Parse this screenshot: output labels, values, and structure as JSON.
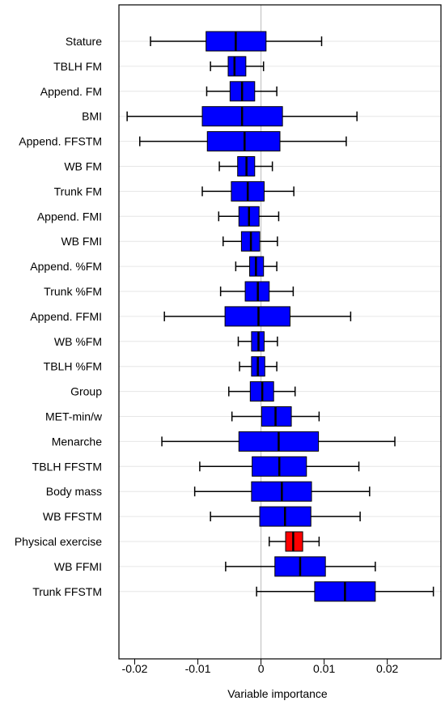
{
  "chart_data": {
    "type": "boxplot",
    "orientation": "horizontal",
    "xlabel": "Variable importance",
    "ylabel": "",
    "xlim": [
      -0.0225,
      0.0285
    ],
    "xticks": [
      -0.02,
      -0.01,
      0,
      0.01,
      0.02
    ],
    "xtick_labels": [
      "-0.02",
      "-0.01",
      "0",
      "0.01",
      "0.02"
    ],
    "grid": "horizontal",
    "zero_line": true,
    "colors": {
      "default_box": "#0000ff",
      "highlight_box": "#ff0000",
      "grid": "#e6e6e6",
      "zero_line": "#bbbbbb"
    },
    "items": [
      {
        "name": "Stature",
        "whisker_low": -0.0175,
        "q1": -0.0087,
        "median": -0.004,
        "q3": 0.0008,
        "whisker_high": 0.0096,
        "highlight": false
      },
      {
        "name": "TBLH FM",
        "whisker_low": -0.008,
        "q1": -0.0052,
        "median": -0.0042,
        "q3": -0.0024,
        "whisker_high": 0.0004,
        "highlight": false
      },
      {
        "name": "Append. FM",
        "whisker_low": -0.0086,
        "q1": -0.0049,
        "median": -0.003,
        "q3": -0.001,
        "whisker_high": 0.0025,
        "highlight": false
      },
      {
        "name": "BMI",
        "whisker_low": -0.0212,
        "q1": -0.0093,
        "median": -0.003,
        "q3": 0.0034,
        "whisker_high": 0.0152,
        "highlight": false
      },
      {
        "name": "Append. FFSTM",
        "whisker_low": -0.0192,
        "q1": -0.0085,
        "median": -0.0026,
        "q3": 0.003,
        "whisker_high": 0.0135,
        "highlight": false
      },
      {
        "name": "WB FM",
        "whisker_low": -0.0066,
        "q1": -0.0037,
        "median": -0.0023,
        "q3": -0.001,
        "whisker_high": 0.0018,
        "highlight": false
      },
      {
        "name": "Trunk FM",
        "whisker_low": -0.0093,
        "q1": -0.0047,
        "median": -0.0021,
        "q3": 0.0005,
        "whisker_high": 0.0052,
        "highlight": false
      },
      {
        "name": "Append. FMI",
        "whisker_low": -0.0067,
        "q1": -0.0035,
        "median": -0.0019,
        "q3": -0.0003,
        "whisker_high": 0.0028,
        "highlight": false
      },
      {
        "name": "WB FMI",
        "whisker_low": -0.006,
        "q1": -0.0031,
        "median": -0.0016,
        "q3": -0.0002,
        "whisker_high": 0.0026,
        "highlight": false
      },
      {
        "name": "Append. %FM",
        "whisker_low": -0.004,
        "q1": -0.0018,
        "median": -0.0008,
        "q3": 0.0004,
        "whisker_high": 0.0025,
        "highlight": false
      },
      {
        "name": "Trunk %FM",
        "whisker_low": -0.0064,
        "q1": -0.0025,
        "median": -0.0005,
        "q3": 0.0013,
        "whisker_high": 0.0051,
        "highlight": false
      },
      {
        "name": "Append. FFMI",
        "whisker_low": -0.0153,
        "q1": -0.0057,
        "median": -0.0004,
        "q3": 0.0046,
        "whisker_high": 0.0142,
        "highlight": false
      },
      {
        "name": "WB %FM",
        "whisker_low": -0.0036,
        "q1": -0.0015,
        "median": -0.0004,
        "q3": 0.0005,
        "whisker_high": 0.0026,
        "highlight": false
      },
      {
        "name": "TBLH %FM",
        "whisker_low": -0.0034,
        "q1": -0.0015,
        "median": -0.0005,
        "q3": 0.0006,
        "whisker_high": 0.0025,
        "highlight": false
      },
      {
        "name": "Group",
        "whisker_low": -0.0051,
        "q1": -0.0017,
        "median": 0.0002,
        "q3": 0.002,
        "whisker_high": 0.0054,
        "highlight": false
      },
      {
        "name": "MET-min/w",
        "whisker_low": -0.0046,
        "q1": 0.0001,
        "median": 0.0023,
        "q3": 0.0048,
        "whisker_high": 0.0092,
        "highlight": false
      },
      {
        "name": "Menarche",
        "whisker_low": -0.0157,
        "q1": -0.0035,
        "median": 0.0028,
        "q3": 0.0091,
        "whisker_high": 0.0212,
        "highlight": false
      },
      {
        "name": "TBLH FFSTM",
        "whisker_low": -0.0097,
        "q1": -0.0014,
        "median": 0.0029,
        "q3": 0.0072,
        "whisker_high": 0.0155,
        "highlight": false
      },
      {
        "name": "Body mass",
        "whisker_low": -0.0105,
        "q1": -0.0015,
        "median": 0.0033,
        "q3": 0.008,
        "whisker_high": 0.0172,
        "highlight": false
      },
      {
        "name": "WB FFSTM",
        "whisker_low": -0.008,
        "q1": -0.0002,
        "median": 0.0038,
        "q3": 0.0079,
        "whisker_high": 0.0157,
        "highlight": false
      },
      {
        "name": "Physical exercise",
        "whisker_low": 0.0013,
        "q1": 0.0039,
        "median": 0.0051,
        "q3": 0.0066,
        "whisker_high": 0.0092,
        "highlight": true
      },
      {
        "name": "WB FFMI",
        "whisker_low": -0.0056,
        "q1": 0.0022,
        "median": 0.0062,
        "q3": 0.0102,
        "whisker_high": 0.0181,
        "highlight": false
      },
      {
        "name": "Trunk FFSTM",
        "whisker_low": -0.0007,
        "q1": 0.0085,
        "median": 0.0133,
        "q3": 0.0181,
        "whisker_high": 0.0273,
        "highlight": false
      }
    ]
  }
}
